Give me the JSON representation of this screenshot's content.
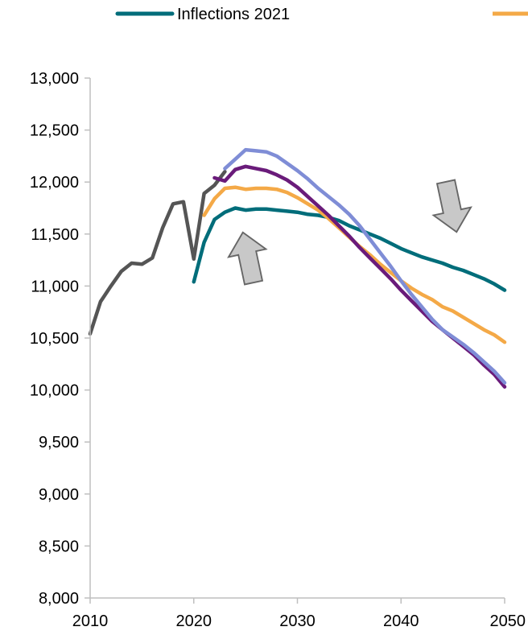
{
  "chart_data": {
    "type": "line",
    "title": "",
    "xlabel": "",
    "ylabel": "",
    "xlim": [
      2010,
      2050
    ],
    "ylim": [
      8000,
      13000
    ],
    "x_ticks": [
      2010,
      2020,
      2030,
      2040,
      2050
    ],
    "x_tick_labels": [
      "2010",
      "2020",
      "2030",
      "2040",
      "2050"
    ],
    "y_ticks": [
      8000,
      8500,
      9000,
      9500,
      10000,
      10500,
      11000,
      11500,
      12000,
      12500,
      13000
    ],
    "y_tick_labels": [
      "8,000",
      "8,500",
      "9,000",
      "9,500",
      "10,000",
      "10,500",
      "11,000",
      "11,500",
      "12,000",
      "12,500",
      "13,000"
    ],
    "grid": false,
    "legend_position": "top",
    "legend": [
      {
        "label": "Inflections 2021",
        "color": "#006D7A"
      },
      {
        "label": "",
        "color": "#F4A947"
      }
    ],
    "annotations": [
      {
        "type": "arrow",
        "direction": "up-right",
        "near": [
          2026,
          11250
        ]
      },
      {
        "type": "arrow",
        "direction": "down-left",
        "near": [
          2024,
          11400
        ]
      }
    ],
    "series": [
      {
        "color": "#555555",
        "x": [
          2010,
          2011,
          2012,
          2013,
          2014,
          2015,
          2016,
          2017,
          2018,
          2019,
          2020,
          2021,
          2022,
          2023
        ],
        "y": [
          10540,
          10850,
          11000,
          11140,
          11220,
          11210,
          11270,
          11560,
          11790,
          11810,
          11260,
          11890,
          11970,
          12100
        ]
      },
      {
        "name": "Inflections 2021",
        "color": "#006D7A",
        "x": [
          2020,
          2021,
          2022,
          2023,
          2024,
          2025,
          2026,
          2027,
          2028,
          2029,
          2030,
          2031,
          2032,
          2033,
          2034,
          2035,
          2036,
          2037,
          2038,
          2039,
          2040,
          2041,
          2042,
          2043,
          2044,
          2045,
          2046,
          2047,
          2048,
          2049,
          2050
        ],
        "y": [
          11040,
          11420,
          11640,
          11710,
          11750,
          11730,
          11740,
          11740,
          11730,
          11720,
          11710,
          11690,
          11680,
          11660,
          11630,
          11580,
          11540,
          11500,
          11460,
          11410,
          11360,
          11320,
          11280,
          11250,
          11220,
          11180,
          11150,
          11110,
          11070,
          11020,
          10960
        ]
      },
      {
        "color": "#F4A947",
        "x": [
          2021,
          2022,
          2023,
          2024,
          2025,
          2026,
          2027,
          2028,
          2029,
          2030,
          2031,
          2032,
          2033,
          2034,
          2035,
          2036,
          2037,
          2038,
          2039,
          2040,
          2041,
          2042,
          2043,
          2044,
          2045,
          2046,
          2047,
          2048,
          2049,
          2050
        ],
        "y": [
          11680,
          11840,
          11940,
          11950,
          11930,
          11940,
          11940,
          11930,
          11900,
          11850,
          11790,
          11730,
          11650,
          11560,
          11470,
          11380,
          11300,
          11210,
          11130,
          11050,
          10980,
          10920,
          10870,
          10800,
          10760,
          10700,
          10640,
          10580,
          10530,
          10460
        ]
      },
      {
        "color": "#6A1B7A",
        "x": [
          2022,
          2023,
          2024,
          2025,
          2026,
          2027,
          2028,
          2029,
          2030,
          2031,
          2032,
          2033,
          2034,
          2035,
          2036,
          2037,
          2038,
          2039,
          2040,
          2041,
          2042,
          2043,
          2044,
          2045,
          2046,
          2047,
          2048,
          2049,
          2050
        ],
        "y": [
          12040,
          12010,
          12120,
          12150,
          12130,
          12110,
          12070,
          12020,
          11950,
          11860,
          11770,
          11680,
          11580,
          11480,
          11370,
          11270,
          11170,
          11070,
          10960,
          10860,
          10760,
          10660,
          10580,
          10500,
          10420,
          10340,
          10240,
          10150,
          10030
        ]
      },
      {
        "color": "#7F8DD6",
        "x": [
          2023,
          2024,
          2025,
          2026,
          2027,
          2028,
          2029,
          2030,
          2031,
          2032,
          2033,
          2034,
          2035,
          2036,
          2037,
          2038,
          2039,
          2040,
          2041,
          2042,
          2043,
          2044,
          2045,
          2046,
          2047,
          2048,
          2049,
          2050
        ],
        "y": [
          12130,
          12220,
          12310,
          12300,
          12290,
          12250,
          12180,
          12110,
          12030,
          11940,
          11860,
          11780,
          11690,
          11580,
          11450,
          11320,
          11190,
          11050,
          10920,
          10800,
          10680,
          10580,
          10510,
          10440,
          10360,
          10270,
          10180,
          10070
        ]
      }
    ]
  }
}
